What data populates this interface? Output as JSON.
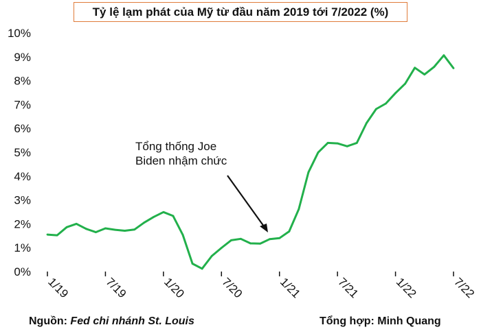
{
  "chart_data": {
    "type": "line",
    "title": "Tỷ lệ lạm phát của Mỹ từ đầu năm 2019 tới 7/2022 (%)",
    "xlabel": "",
    "ylabel": "",
    "ylim": [
      0,
      10
    ],
    "yticks": [
      "0%",
      "1%",
      "2%",
      "3%",
      "4%",
      "5%",
      "6%",
      "7%",
      "8%",
      "9%",
      "10%"
    ],
    "xticks": [
      "1/19",
      "7/19",
      "1/20",
      "7/20",
      "1/21",
      "7/21",
      "1/22",
      "7/22"
    ],
    "grid": false,
    "color": "#22b04b",
    "series": [
      {
        "x": [
          "1/19",
          "2/19",
          "3/19",
          "4/19",
          "5/19",
          "6/19",
          "7/19",
          "8/19",
          "9/19",
          "10/19",
          "11/19",
          "12/19",
          "1/20",
          "2/20",
          "3/20",
          "4/20",
          "5/20",
          "6/20",
          "7/20",
          "8/20",
          "9/20",
          "10/20",
          "11/20",
          "12/20",
          "1/21",
          "2/21",
          "3/21",
          "4/21",
          "5/21",
          "6/21",
          "7/21",
          "8/21",
          "9/21",
          "10/21",
          "11/21",
          "12/21",
          "1/22",
          "2/22",
          "3/22",
          "4/22",
          "5/22",
          "6/22",
          "7/22"
        ],
        "values": [
          1.55,
          1.52,
          1.86,
          2.0,
          1.79,
          1.65,
          1.81,
          1.75,
          1.71,
          1.76,
          2.05,
          2.29,
          2.49,
          2.33,
          1.54,
          0.33,
          0.12,
          0.65,
          0.99,
          1.31,
          1.37,
          1.18,
          1.17,
          1.36,
          1.4,
          1.68,
          2.62,
          4.16,
          4.99,
          5.39,
          5.37,
          5.25,
          5.39,
          6.22,
          6.81,
          7.04,
          7.48,
          7.87,
          8.54,
          8.26,
          8.58,
          9.06,
          8.52
        ]
      }
    ],
    "annotation": {
      "line1": "Tổng thống Joe",
      "line2": "Biden nhậm chức"
    }
  },
  "footer": {
    "source_label": "Nguồn: ",
    "source_value": "Fed chi nhánh St. Louis",
    "credit": "Tổng hợp: Minh Quang"
  }
}
